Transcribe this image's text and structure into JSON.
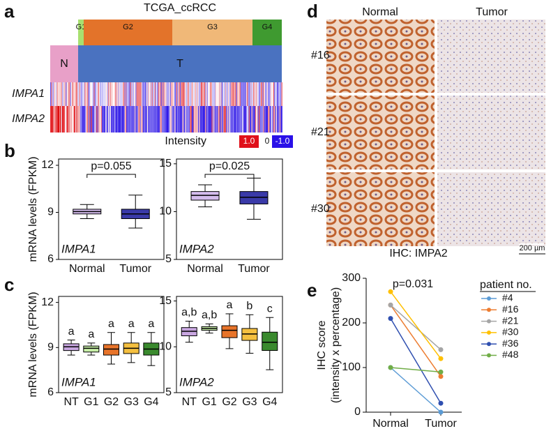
{
  "panel_labels": [
    "a",
    "b",
    "c",
    "d",
    "e"
  ],
  "panels": {
    "a": {
      "title": "TCGA_ccRCC",
      "grades": [
        "G1",
        "G2",
        "G3",
        "G4"
      ],
      "grade_colors": [
        "#a8e070",
        "#e3732a",
        "#f0b878",
        "#3f9a30"
      ],
      "groups": [
        "N",
        "T"
      ],
      "group_colors": [
        "#e8a0c8",
        "#4a72c0"
      ],
      "genes": [
        "IMPA1",
        "IMPA2"
      ],
      "legend": {
        "title": "Intensity",
        "ticks": [
          {
            "value": 1,
            "label": "1.0"
          },
          0,
          {
            "value": -1,
            "label": "-1.0"
          }
        ],
        "colors": [
          "#e0101a",
          "#ffffff",
          "#2a10e8"
        ]
      }
    },
    "b": {
      "ylabel": "mRNA levels (FPKM)",
      "plots": [
        {
          "gene": "IMPA1",
          "categories": [
            "Normal",
            "Tumor"
          ],
          "ylim": [
            6,
            12.4
          ],
          "yticks": [
            6,
            9,
            12
          ],
          "colors": [
            "#d4bcee",
            "#3a3aa8"
          ],
          "annotation": "p=0.055",
          "boxes": [
            {
              "low": 8.6,
              "q1": 8.9,
              "median": 9.05,
              "q3": 9.2,
              "high": 9.5
            },
            {
              "low": 8.0,
              "q1": 8.6,
              "median": 8.9,
              "q3": 9.2,
              "high": 10.1
            }
          ]
        },
        {
          "gene": "IMPA2",
          "categories": [
            "Normal",
            "Tumor"
          ],
          "ylim": [
            5,
            15.5
          ],
          "yticks": [
            5,
            10,
            15
          ],
          "colors": [
            "#d4bcee",
            "#3a3aa8"
          ],
          "annotation": "p=0.025",
          "boxes": [
            {
              "low": 10.5,
              "q1": 11.2,
              "median": 11.7,
              "q3": 12.1,
              "high": 12.8
            },
            {
              "low": 9.2,
              "q1": 10.8,
              "median": 11.5,
              "q3": 12.1,
              "high": 13.5
            }
          ]
        }
      ]
    },
    "c": {
      "ylabel": "mRNA levels (FPKM)",
      "plots": [
        {
          "gene": "IMPA1",
          "categories": [
            "NT",
            "G1",
            "G2",
            "G3",
            "G4"
          ],
          "ylim": [
            6,
            12.4
          ],
          "yticks": [
            6,
            9,
            12
          ],
          "colors": [
            "#c8a6e0",
            "#c8f0a8",
            "#e8742a",
            "#f5c040",
            "#3a8a2e"
          ],
          "letters": [
            "a",
            "a",
            "a",
            "a",
            "a"
          ],
          "boxes": [
            {
              "low": 8.5,
              "q1": 8.8,
              "median": 9.05,
              "q3": 9.25,
              "high": 9.5
            },
            {
              "low": 8.5,
              "q1": 8.7,
              "median": 8.95,
              "q3": 9.1,
              "high": 9.3
            },
            {
              "low": 7.9,
              "q1": 8.5,
              "median": 8.9,
              "q3": 9.2,
              "high": 10.0
            },
            {
              "low": 8.0,
              "q1": 8.6,
              "median": 8.95,
              "q3": 9.3,
              "high": 10.0
            },
            {
              "low": 7.8,
              "q1": 8.5,
              "median": 8.9,
              "q3": 9.3,
              "high": 10.0
            }
          ]
        },
        {
          "gene": "IMPA2",
          "categories": [
            "NT",
            "G1",
            "G2",
            "G3",
            "G4"
          ],
          "ylim": [
            5,
            15.5
          ],
          "yticks": [
            5,
            10,
            15
          ],
          "colors": [
            "#c8a6e0",
            "#c8f0a8",
            "#e8742a",
            "#f5c040",
            "#3a8a2e"
          ],
          "letters": [
            "a,b",
            "a,b",
            "a",
            "b",
            "c"
          ],
          "boxes": [
            {
              "low": 10.5,
              "q1": 11.2,
              "median": 11.7,
              "q3": 12.1,
              "high": 12.8
            },
            {
              "low": 11.5,
              "q1": 11.8,
              "median": 12.0,
              "q3": 12.2,
              "high": 12.5
            },
            {
              "low": 9.8,
              "q1": 11.0,
              "median": 11.8,
              "q3": 12.3,
              "high": 13.6
            },
            {
              "low": 9.3,
              "q1": 10.7,
              "median": 11.4,
              "q3": 12.0,
              "high": 13.5
            },
            {
              "low": 7.5,
              "q1": 9.6,
              "median": 10.5,
              "q3": 11.6,
              "high": 13.2
            }
          ]
        }
      ]
    },
    "d": {
      "columns": [
        "Normal",
        "Tumor"
      ],
      "rows": [
        "#16",
        "#21",
        "#30"
      ],
      "caption": "IHC: IMPA2",
      "scale_bar": "200 µm"
    }
  },
  "chart_data": {
    "type": "line",
    "categories": [
      "Normal",
      "Tumor"
    ],
    "ylabel": [
      "IHC score",
      "(intensity x percentage)"
    ],
    "annotation": "p=0.031",
    "legend_title": "patient no.",
    "ylim": [
      0,
      300
    ],
    "yticks": [
      0,
      100,
      200,
      300
    ],
    "series": [
      {
        "name": "#4",
        "color": "#5b9bd5",
        "values": [
          100,
          0
        ]
      },
      {
        "name": "#16",
        "color": "#ed7d31",
        "values": [
          240,
          80
        ]
      },
      {
        "name": "#21",
        "color": "#a5a5a5",
        "values": [
          240,
          140
        ]
      },
      {
        "name": "#30",
        "color": "#ffc000",
        "values": [
          270,
          120
        ]
      },
      {
        "name": "#36",
        "color": "#2f4fb0",
        "values": [
          210,
          20
        ]
      },
      {
        "name": "#48",
        "color": "#70ad47",
        "values": [
          100,
          90
        ]
      }
    ]
  }
}
